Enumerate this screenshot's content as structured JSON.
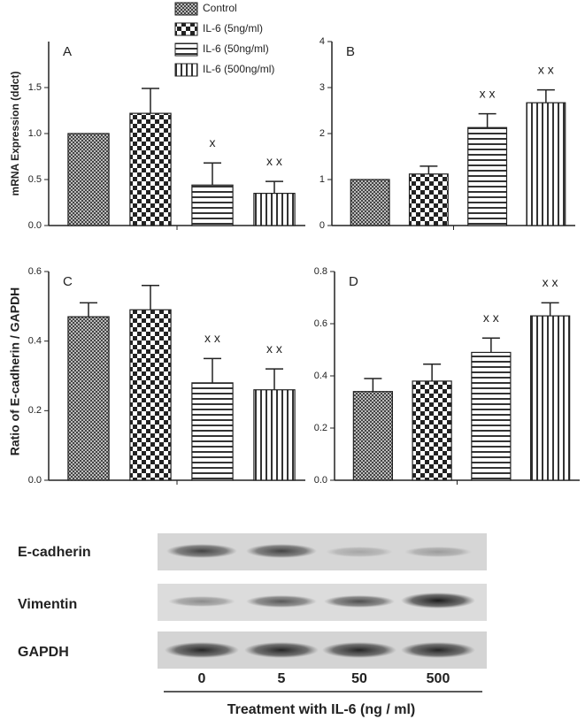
{
  "legend": [
    "Control",
    "IL-6 (5ng/ml)",
    "IL-6 (50ng/ml)",
    "IL-6 (500ng/ml)"
  ],
  "chart_data": [
    {
      "type": "bar",
      "panel": "A",
      "ylabel": "mRNA Expression (ddct)",
      "values": [
        1.0,
        1.22,
        0.44,
        0.35
      ],
      "errors": [
        0,
        0.27,
        0.24,
        0.13
      ],
      "annotations": [
        null,
        null,
        "x",
        "x x"
      ],
      "ylim": [
        0,
        2.0
      ],
      "yticks": [
        {
          "value": 0,
          "label": "0.0"
        },
        {
          "value": 0.5,
          "label": "0.5"
        },
        {
          "value": 1,
          "label": "1.0"
        },
        {
          "value": 1.5,
          "label": "1.5"
        }
      ]
    },
    {
      "type": "bar",
      "panel": "B",
      "values": [
        1.0,
        1.12,
        2.13,
        2.67
      ],
      "errors": [
        0,
        0.17,
        0.3,
        0.28
      ],
      "annotations": [
        null,
        null,
        "x x",
        "x x"
      ],
      "ylim": [
        0,
        4
      ],
      "yticks": [
        0,
        1,
        2,
        3,
        4
      ]
    },
    {
      "type": "bar",
      "panel": "C",
      "ylabel": "Ratio of E-cadherin / GAPDH",
      "values": [
        0.47,
        0.49,
        0.28,
        0.26
      ],
      "errors": [
        0.04,
        0.07,
        0.07,
        0.06
      ],
      "annotations": [
        null,
        null,
        "x x",
        "x x"
      ],
      "ylim": [
        0,
        0.6
      ],
      "yticks": [
        {
          "value": 0,
          "label": "0.0"
        },
        {
          "value": 0.2,
          "label": "0.2"
        },
        {
          "value": 0.4,
          "label": "0.4"
        },
        {
          "value": 0.6,
          "label": "0.6"
        }
      ]
    },
    {
      "type": "bar",
      "panel": "D",
      "values": [
        0.34,
        0.38,
        0.49,
        0.63
      ],
      "errors": [
        0.05,
        0.065,
        0.055,
        0.05
      ],
      "annotations": [
        null,
        null,
        "x x",
        "x x"
      ],
      "ylim": [
        0,
        0.8
      ],
      "yticks": [
        {
          "value": 0,
          "label": "0.0"
        },
        {
          "value": 0.2,
          "label": "0.2"
        },
        {
          "value": 0.4,
          "label": "0.4"
        },
        {
          "value": 0.6,
          "label": "0.6"
        },
        {
          "value": 0.8,
          "label": "0.8"
        }
      ]
    }
  ],
  "blot": {
    "rows": [
      "E-cadherin",
      "Vimentin",
      "GAPDH"
    ],
    "lanes": [
      "0",
      "5",
      "50",
      "500"
    ],
    "xlabel": "Treatment with IL-6 (ng / ml)"
  }
}
